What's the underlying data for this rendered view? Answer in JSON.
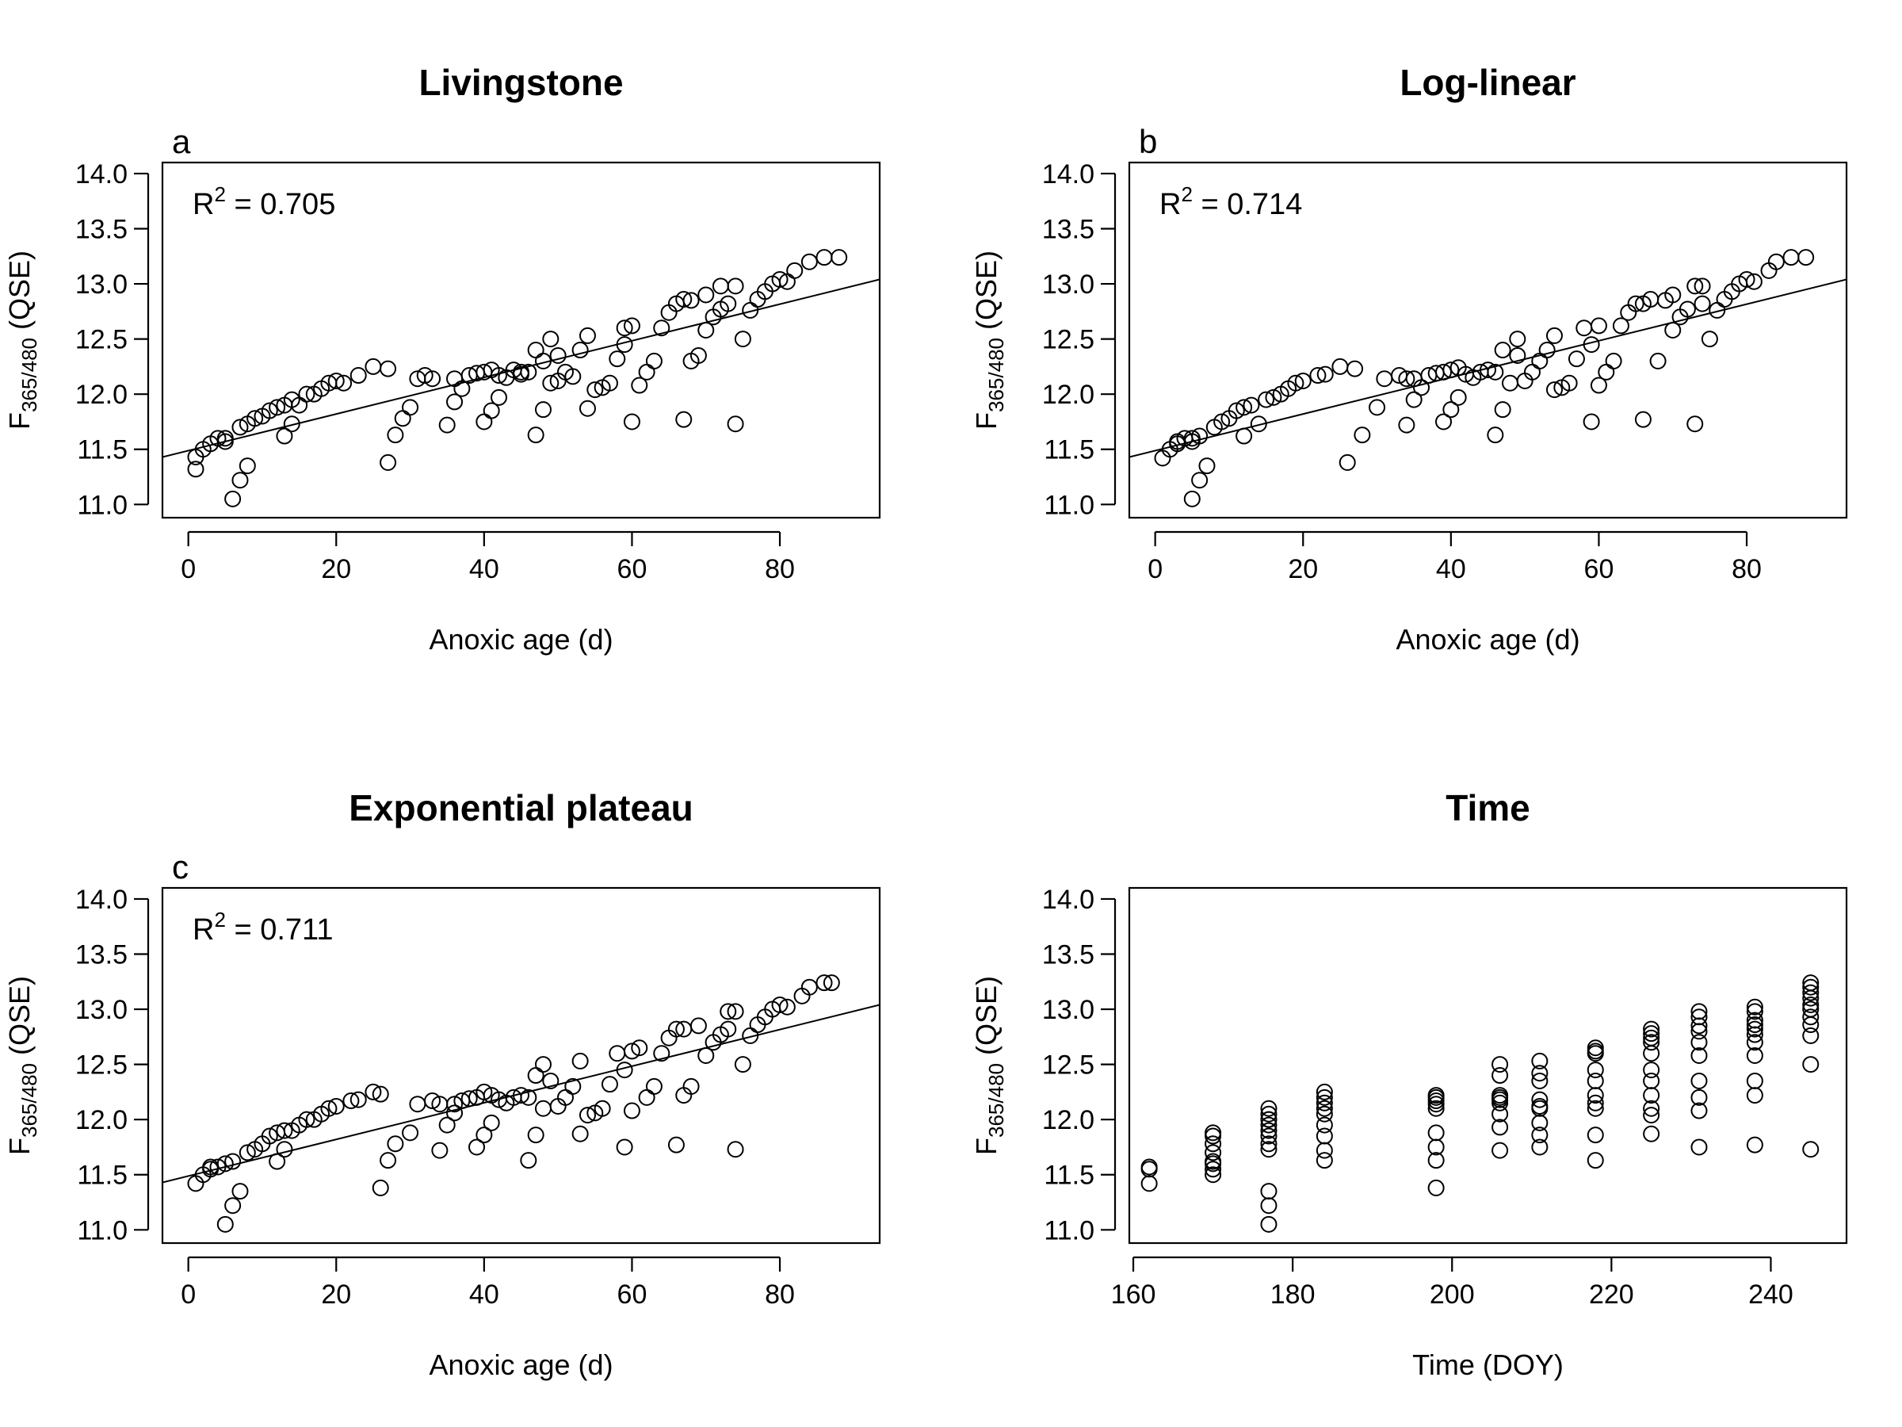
{
  "chart_data": [
    {
      "type": "scatter",
      "panel": "a",
      "title": "Livingstone",
      "xlabel": "Anoxic age (d)",
      "ylabel": {
        "main": "F",
        "sub": "365/480",
        "tail": " (QSE)"
      },
      "annotation": {
        "r_label": "R",
        "exponent": "2",
        "eq": " = 0.705"
      },
      "xlim": [
        -3.5,
        93.5
      ],
      "ylim": [
        10.88,
        14.1
      ],
      "xticks": [
        0,
        20,
        40,
        60,
        80
      ],
      "yticks": [
        11.0,
        11.5,
        12.0,
        12.5,
        13.0,
        13.5,
        14.0
      ],
      "ytick_labels": [
        "11.0",
        "11.5",
        "12.0",
        "12.5",
        "13.0",
        "13.5",
        "14.0"
      ],
      "grid": false,
      "fit_line": {
        "x": [
          -3.5,
          93.5
        ],
        "y": [
          11.43,
          13.04
        ]
      },
      "points": {
        "x": [
          1,
          1,
          2,
          3,
          4,
          5,
          5,
          6,
          7,
          7,
          8,
          8,
          9,
          10,
          11,
          12,
          13,
          13,
          14,
          14,
          15,
          16,
          17,
          18,
          19,
          20,
          21,
          23,
          25,
          27,
          27,
          28,
          29,
          30,
          31,
          32,
          33,
          35,
          36,
          36,
          37,
          38,
          39,
          40,
          40,
          41,
          41,
          42,
          42,
          43,
          44,
          45,
          45,
          46,
          47,
          47,
          48,
          48,
          49,
          49,
          50,
          50,
          51,
          52,
          53,
          54,
          54,
          55,
          56,
          57,
          58,
          59,
          59,
          60,
          60,
          61,
          62,
          63,
          64,
          65,
          66,
          67,
          67,
          68,
          68,
          69,
          70,
          70,
          71,
          72,
          72,
          73,
          74,
          74,
          75,
          76,
          77,
          78,
          79,
          80,
          81,
          82,
          84,
          86,
          88
        ],
        "y": [
          11.32,
          11.43,
          11.5,
          11.55,
          11.6,
          11.6,
          11.57,
          11.05,
          11.22,
          11.7,
          11.35,
          11.73,
          11.78,
          11.8,
          11.85,
          11.88,
          11.62,
          11.9,
          11.73,
          11.95,
          11.9,
          12.0,
          12.0,
          12.05,
          12.1,
          12.12,
          12.1,
          12.17,
          12.25,
          12.23,
          11.38,
          11.63,
          11.78,
          11.88,
          12.14,
          12.17,
          12.14,
          11.72,
          12.14,
          11.93,
          12.05,
          12.17,
          12.19,
          11.75,
          12.2,
          12.22,
          11.85,
          12.17,
          11.97,
          12.15,
          12.22,
          12.2,
          12.18,
          12.2,
          12.4,
          11.63,
          12.3,
          11.86,
          12.5,
          12.1,
          12.35,
          12.12,
          12.2,
          12.16,
          12.4,
          12.53,
          11.87,
          12.04,
          12.06,
          12.1,
          12.32,
          12.6,
          12.45,
          11.75,
          12.62,
          12.08,
          12.2,
          12.3,
          12.6,
          12.74,
          12.82,
          11.77,
          12.86,
          12.3,
          12.85,
          12.35,
          12.9,
          12.58,
          12.7,
          12.77,
          12.98,
          12.82,
          12.98,
          11.73,
          12.5,
          12.76,
          12.86,
          12.93,
          13.0,
          13.04,
          13.02,
          13.12,
          13.2,
          13.24,
          13.24
        ]
      }
    },
    {
      "type": "scatter",
      "panel": "b",
      "title": "Log-linear",
      "xlabel": "Anoxic age (d)",
      "ylabel": {
        "main": "F",
        "sub": "365/480",
        "tail": " (QSE)"
      },
      "annotation": {
        "r_label": "R",
        "exponent": "2",
        "eq": " = 0.714"
      },
      "xlim": [
        -3.5,
        93.5
      ],
      "ylim": [
        10.88,
        14.1
      ],
      "xticks": [
        0,
        20,
        40,
        60,
        80
      ],
      "yticks": [
        11.0,
        11.5,
        12.0,
        12.5,
        13.0,
        13.5,
        14.0
      ],
      "ytick_labels": [
        "11.0",
        "11.5",
        "12.0",
        "12.5",
        "13.0",
        "13.5",
        "14.0"
      ],
      "grid": false,
      "fit_line": {
        "x": [
          -3.5,
          93.5
        ],
        "y": [
          11.43,
          13.04
        ]
      },
      "points": {
        "x": [
          1,
          2,
          3,
          3,
          4,
          5,
          5,
          5,
          6,
          6,
          7,
          8,
          9,
          10,
          11,
          12,
          12,
          13,
          14,
          15,
          16,
          17,
          18,
          19,
          20,
          22,
          23,
          25,
          26,
          27,
          28,
          30,
          31,
          33,
          34,
          34,
          35,
          35,
          36,
          37,
          38,
          39,
          39,
          40,
          40,
          41,
          41,
          42,
          43,
          44,
          45,
          46,
          46,
          47,
          47,
          48,
          49,
          49,
          50,
          51,
          52,
          53,
          54,
          54,
          55,
          56,
          57,
          58,
          59,
          59,
          60,
          60,
          61,
          62,
          63,
          64,
          65,
          66,
          66,
          67,
          68,
          69,
          70,
          70,
          71,
          72,
          73,
          73,
          74,
          74,
          75,
          76,
          77,
          78,
          79,
          80,
          81,
          83,
          84,
          86,
          88
        ],
        "y": [
          11.42,
          11.5,
          11.55,
          11.57,
          11.6,
          11.6,
          11.57,
          11.05,
          11.62,
          11.22,
          11.35,
          11.7,
          11.75,
          11.78,
          11.85,
          11.88,
          11.62,
          11.9,
          11.73,
          11.95,
          11.97,
          12.0,
          12.05,
          12.1,
          12.12,
          12.17,
          12.18,
          12.25,
          11.38,
          12.23,
          11.63,
          11.88,
          12.14,
          12.17,
          12.14,
          11.72,
          11.95,
          12.14,
          12.06,
          12.17,
          12.19,
          11.75,
          12.2,
          11.86,
          12.22,
          12.24,
          11.97,
          12.18,
          12.15,
          12.2,
          12.22,
          12.2,
          11.63,
          12.4,
          11.86,
          12.1,
          12.5,
          12.35,
          12.12,
          12.2,
          12.3,
          12.4,
          12.53,
          12.04,
          12.06,
          12.1,
          12.32,
          12.6,
          12.45,
          11.75,
          12.62,
          12.08,
          12.2,
          12.3,
          12.62,
          12.74,
          12.82,
          11.77,
          12.82,
          12.86,
          12.3,
          12.85,
          12.58,
          12.9,
          12.7,
          12.77,
          12.98,
          11.73,
          12.82,
          12.98,
          12.5,
          12.76,
          12.86,
          12.93,
          13.0,
          13.04,
          13.02,
          13.12,
          13.2,
          13.24,
          13.24
        ]
      }
    },
    {
      "type": "scatter",
      "panel": "c",
      "title": "Exponential plateau",
      "xlabel": "Anoxic age (d)",
      "ylabel": {
        "main": "F",
        "sub": "365/480",
        "tail": " (QSE)"
      },
      "annotation": {
        "r_label": "R",
        "exponent": "2",
        "eq": " = 0.711"
      },
      "xlim": [
        -3.5,
        93.5
      ],
      "ylim": [
        10.88,
        14.1
      ],
      "xticks": [
        0,
        20,
        40,
        60,
        80
      ],
      "yticks": [
        11.0,
        11.5,
        12.0,
        12.5,
        13.0,
        13.5,
        14.0
      ],
      "ytick_labels": [
        "11.0",
        "11.5",
        "12.0",
        "12.5",
        "13.0",
        "13.5",
        "14.0"
      ],
      "grid": false,
      "fit_line": {
        "x": [
          -3.5,
          93.5
        ],
        "y": [
          11.43,
          13.04
        ]
      },
      "points": {
        "x": [
          1,
          2,
          3,
          3,
          4,
          5,
          5,
          6,
          6,
          7,
          8,
          9,
          10,
          11,
          12,
          12,
          13,
          13,
          14,
          15,
          16,
          17,
          18,
          19,
          20,
          22,
          23,
          25,
          26,
          26,
          27,
          28,
          30,
          31,
          33,
          34,
          34,
          35,
          36,
          36,
          37,
          38,
          39,
          39,
          40,
          40,
          41,
          41,
          42,
          43,
          44,
          45,
          46,
          46,
          47,
          47,
          48,
          48,
          49,
          50,
          51,
          52,
          53,
          53,
          54,
          55,
          56,
          57,
          58,
          59,
          59,
          60,
          60,
          61,
          62,
          63,
          64,
          65,
          66,
          66,
          67,
          67,
          68,
          69,
          70,
          71,
          72,
          73,
          73,
          74,
          74,
          75,
          76,
          77,
          78,
          79,
          80,
          81,
          83,
          84,
          86,
          87
        ],
        "y": [
          11.42,
          11.5,
          11.55,
          11.57,
          11.57,
          11.6,
          11.05,
          11.62,
          11.22,
          11.35,
          11.7,
          11.73,
          11.78,
          11.85,
          11.88,
          11.62,
          11.9,
          11.73,
          11.9,
          11.95,
          12.0,
          12.0,
          12.05,
          12.1,
          12.12,
          12.17,
          12.18,
          12.25,
          12.23,
          11.38,
          11.63,
          11.78,
          11.88,
          12.14,
          12.17,
          12.14,
          11.72,
          11.95,
          12.14,
          12.06,
          12.17,
          12.19,
          11.75,
          12.2,
          11.86,
          12.25,
          12.22,
          11.97,
          12.18,
          12.15,
          12.2,
          12.22,
          12.2,
          11.63,
          12.4,
          11.86,
          12.5,
          12.1,
          12.35,
          12.12,
          12.2,
          12.3,
          12.53,
          11.87,
          12.04,
          12.06,
          12.1,
          12.32,
          12.6,
          12.45,
          11.75,
          12.62,
          12.08,
          12.65,
          12.2,
          12.3,
          12.6,
          12.74,
          12.82,
          11.77,
          12.82,
          12.22,
          12.3,
          12.85,
          12.58,
          12.7,
          12.77,
          12.98,
          12.82,
          12.98,
          11.73,
          12.5,
          12.76,
          12.86,
          12.93,
          13.0,
          13.04,
          13.02,
          13.12,
          13.2,
          13.24,
          13.24
        ]
      }
    },
    {
      "type": "scatter",
      "panel": "",
      "title": "Time",
      "xlabel": "Time (DOY)",
      "ylabel": {
        "main": "F",
        "sub": "365/480",
        "tail": " (QSE)"
      },
      "annotation": null,
      "xlim": [
        159.5,
        249.5
      ],
      "ylim": [
        10.88,
        14.1
      ],
      "xticks": [
        160,
        180,
        200,
        220,
        240
      ],
      "yticks": [
        11.0,
        11.5,
        12.0,
        12.5,
        13.0,
        13.5,
        14.0
      ],
      "ytick_labels": [
        "11.0",
        "11.5",
        "12.0",
        "12.5",
        "13.0",
        "13.5",
        "14.0"
      ],
      "grid": false,
      "fit_line": null,
      "points": {
        "x": [
          162,
          162,
          162,
          170,
          170,
          170,
          170,
          170,
          170,
          170,
          170,
          177,
          177,
          177,
          177,
          177,
          177,
          177,
          177,
          177,
          177,
          177,
          177,
          184,
          184,
          184,
          184,
          184,
          184,
          184,
          184,
          184,
          198,
          198,
          198,
          198,
          198,
          198,
          198,
          198,
          198,
          206,
          206,
          206,
          206,
          206,
          206,
          206,
          206,
          206,
          211,
          211,
          211,
          211,
          211,
          211,
          211,
          211,
          211,
          218,
          218,
          218,
          218,
          218,
          218,
          218,
          218,
          218,
          218,
          225,
          225,
          225,
          225,
          225,
          225,
          225,
          225,
          225,
          225,
          225,
          231,
          231,
          231,
          231,
          231,
          231,
          231,
          231,
          231,
          231,
          238,
          238,
          238,
          238,
          238,
          238,
          238,
          238,
          238,
          238,
          238,
          245,
          245,
          245,
          245,
          245,
          245,
          245,
          245,
          245,
          245,
          245
        ],
        "y": [
          11.42,
          11.55,
          11.57,
          11.5,
          11.55,
          11.6,
          11.62,
          11.7,
          11.78,
          11.85,
          11.88,
          11.05,
          11.22,
          11.35,
          11.73,
          11.78,
          11.9,
          11.95,
          12.0,
          12.05,
          12.1,
          12.0,
          11.85,
          11.63,
          11.72,
          11.85,
          11.95,
          12.05,
          12.1,
          12.15,
          12.2,
          12.25,
          11.38,
          11.63,
          11.75,
          11.88,
          12.1,
          12.14,
          12.17,
          12.2,
          12.22,
          11.72,
          11.93,
          12.05,
          12.15,
          12.18,
          12.2,
          12.22,
          12.4,
          12.5,
          11.75,
          11.86,
          11.97,
          12.1,
          12.12,
          12.18,
          12.35,
          12.42,
          12.53,
          11.63,
          11.86,
          12.1,
          12.15,
          12.22,
          12.35,
          12.45,
          12.6,
          12.62,
          12.65,
          11.87,
          12.04,
          12.1,
          12.22,
          12.35,
          12.45,
          12.6,
          12.7,
          12.74,
          12.78,
          12.82,
          11.75,
          12.08,
          12.2,
          12.35,
          12.58,
          12.7,
          12.8,
          12.85,
          12.93,
          12.98,
          11.77,
          12.22,
          12.35,
          12.58,
          12.7,
          12.77,
          12.82,
          12.86,
          12.9,
          12.98,
          13.02,
          11.73,
          12.5,
          12.76,
          12.86,
          12.93,
          13.0,
          13.04,
          13.1,
          13.15,
          13.2,
          13.24
        ]
      }
    }
  ]
}
